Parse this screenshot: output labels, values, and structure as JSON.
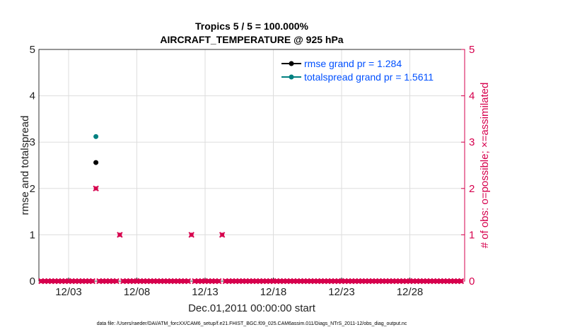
{
  "chart_data": {
    "type": "scatter",
    "title": [
      "Tropics 5 / 5 = 100.000%",
      "AIRCRAFT_TEMPERATURE @ 925 hPa"
    ],
    "xlabel": "Dec.01,2011 00:00:00 start",
    "ylabel_left": "rmse and totalspread",
    "ylabel_right": "# of obs: o=possible; ×=assimilated",
    "xlim": [
      0,
      31
    ],
    "ylim_left": [
      0,
      5
    ],
    "ylim_right": [
      0,
      5
    ],
    "x_ticks": [
      {
        "value": 2,
        "label": "12/03"
      },
      {
        "value": 7,
        "label": "12/08"
      },
      {
        "value": 12,
        "label": "12/13"
      },
      {
        "value": 17,
        "label": "12/18"
      },
      {
        "value": 22,
        "label": "12/23"
      },
      {
        "value": 27,
        "label": "12/28"
      }
    ],
    "y_ticks": [
      0,
      1,
      2,
      3,
      4,
      5
    ],
    "grid": true,
    "legend_placement": "top-right",
    "series": [
      {
        "name": "rmse grand pr = 1.284",
        "color": "#000000",
        "x": [
          4.0
        ],
        "y": [
          2.56
        ]
      },
      {
        "name": "totalspread grand pr = 1.5611",
        "color": "#008080",
        "x": [
          4.0
        ],
        "y": [
          3.12
        ]
      }
    ],
    "obs_count": {
      "color": "#d6004d",
      "x_start": 0,
      "x_step": 0.25,
      "count": 124,
      "nonzero": [
        {
          "x": 4.0,
          "value": 2
        },
        {
          "x": 5.75,
          "value": 1
        },
        {
          "x": 11.0,
          "value": 1
        },
        {
          "x": 13.25,
          "value": 1
        }
      ]
    }
  },
  "footer": "data file: /Users/raeder/DAI/ATM_forcXX/CAM6_setup/f.e21.FHIST_BGC.f09_025.CAM6assim.011/Diags_NTrS_2011-12/obs_diag_output.nc"
}
